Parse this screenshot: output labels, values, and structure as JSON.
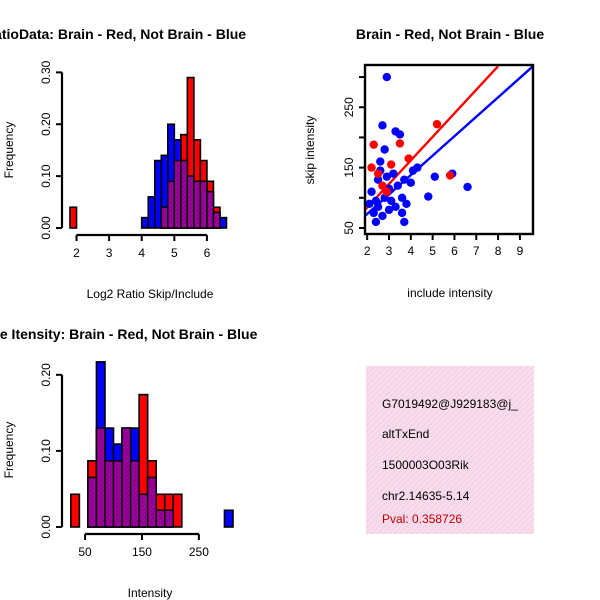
{
  "chart_data": [
    {
      "type": "bar",
      "title": "RatioData: Brain - Red, Not Brain - Blue",
      "xlabel": "Log2 Ratio Skip/Include",
      "ylabel": "Frequency",
      "xlim": [
        1.8,
        6.8
      ],
      "ylim": [
        0,
        0.32
      ],
      "xticks": [
        "2",
        "3",
        "4",
        "5",
        "6"
      ],
      "yticks": [
        "0.00",
        "0.10",
        "0.20",
        "0.30"
      ],
      "bin_width": 0.2,
      "series": [
        {
          "name": "Brain",
          "color": "#ff0000",
          "bins": [
            [
              1.8,
              0.04
            ],
            [
              4.6,
              0.04
            ],
            [
              4.8,
              0.09
            ],
            [
              5.0,
              0.13
            ],
            [
              5.2,
              0.18
            ],
            [
              5.4,
              0.29
            ],
            [
              5.6,
              0.17
            ],
            [
              5.8,
              0.13
            ],
            [
              6.0,
              0.09
            ],
            [
              6.2,
              0.04
            ]
          ]
        },
        {
          "name": "Not Brain",
          "color": "#0000ff",
          "bins": [
            [
              4.0,
              0.02
            ],
            [
              4.2,
              0.06
            ],
            [
              4.4,
              0.13
            ],
            [
              4.6,
              0.14
            ],
            [
              4.8,
              0.2
            ],
            [
              5.0,
              0.17
            ],
            [
              5.2,
              0.13
            ],
            [
              5.4,
              0.1
            ],
            [
              5.6,
              0.09
            ],
            [
              5.8,
              0.09
            ],
            [
              6.0,
              0.07
            ],
            [
              6.2,
              0.03
            ],
            [
              6.4,
              0.02
            ]
          ]
        }
      ]
    },
    {
      "type": "scatter",
      "title": "Brain - Red, Not Brain - Blue",
      "xlabel": "include intensity",
      "ylabel": "skip intensity",
      "xlim": [
        1.9,
        9.6
      ],
      "ylim": [
        40,
        320
      ],
      "xticks": [
        "2",
        "3",
        "4",
        "5",
        "6",
        "7",
        "8",
        "9"
      ],
      "yticks": [
        "50",
        "150",
        "250"
      ],
      "series": [
        {
          "name": "Brain",
          "color": "#ff0000",
          "points": [
            [
              2.2,
              150
            ],
            [
              2.3,
              188
            ],
            [
              2.5,
              140
            ],
            [
              2.7,
              120
            ],
            [
              2.9,
              110
            ],
            [
              3.1,
              155
            ],
            [
              3.5,
              190
            ],
            [
              3.9,
              165
            ],
            [
              5.2,
              222
            ],
            [
              5.8,
              137
            ],
            [
              9.3,
              32
            ]
          ],
          "fit": [
            [
              1.9,
              80
            ],
            [
              8.0,
              318
            ]
          ]
        },
        {
          "name": "Not Brain",
          "color": "#0000ff",
          "points": [
            [
              2.1,
              90
            ],
            [
              2.2,
              110
            ],
            [
              2.3,
              75
            ],
            [
              2.4,
              95
            ],
            [
              2.5,
              130
            ],
            [
              2.5,
              85
            ],
            [
              2.6,
              145
            ],
            [
              2.6,
              160
            ],
            [
              2.7,
              220
            ],
            [
              2.7,
              70
            ],
            [
              2.8,
              180
            ],
            [
              2.8,
              100
            ],
            [
              2.9,
              300
            ],
            [
              2.9,
              135
            ],
            [
              3.0,
              80
            ],
            [
              3.0,
              115
            ],
            [
              3.1,
              95
            ],
            [
              3.2,
              140
            ],
            [
              3.3,
              210
            ],
            [
              3.3,
              85
            ],
            [
              3.4,
              120
            ],
            [
              3.5,
              205
            ],
            [
              3.6,
              75
            ],
            [
              3.6,
              100
            ],
            [
              3.7,
              130
            ],
            [
              3.8,
              90
            ],
            [
              4.0,
              125
            ],
            [
              4.1,
              145
            ],
            [
              4.3,
              150
            ],
            [
              4.8,
              102
            ],
            [
              5.1,
              135
            ],
            [
              5.9,
              140
            ],
            [
              6.6,
              118
            ],
            [
              3.7,
              60
            ],
            [
              2.4,
              60
            ]
          ],
          "fit": [
            [
              1.9,
              70
            ],
            [
              9.6,
              318
            ]
          ]
        }
      ]
    },
    {
      "type": "bar",
      "title": "Gene Itensity: Brain - Red, Not Brain - Blue",
      "xlabel": "Intensity",
      "ylabel": "Frequency",
      "xlim": [
        20,
        310
      ],
      "ylim": [
        0,
        0.23
      ],
      "xticks": [
        "50",
        "150",
        "250"
      ],
      "yticks": [
        "0.00",
        "0.10",
        "0.20"
      ],
      "bin_width": 15,
      "series": [
        {
          "name": "Brain",
          "color": "#ff0000",
          "bins": [
            [
              25,
              0.043
            ],
            [
              55,
              0.087
            ],
            [
              70,
              0.13
            ],
            [
              85,
              0.087
            ],
            [
              100,
              0.087
            ],
            [
              115,
              0.13
            ],
            [
              130,
              0.087
            ],
            [
              145,
              0.174
            ],
            [
              160,
              0.087
            ],
            [
              175,
              0.043
            ],
            [
              190,
              0.043
            ],
            [
              205,
              0.043
            ]
          ]
        },
        {
          "name": "Not Brain",
          "color": "#0000ff",
          "bins": [
            [
              55,
              0.065
            ],
            [
              70,
              0.217
            ],
            [
              85,
              0.13
            ],
            [
              100,
              0.109
            ],
            [
              115,
              0.13
            ],
            [
              130,
              0.13
            ],
            [
              145,
              0.043
            ],
            [
              160,
              0.065
            ],
            [
              175,
              0.022
            ],
            [
              190,
              0.022
            ],
            [
              295,
              0.022
            ]
          ]
        }
      ]
    }
  ],
  "info": {
    "id": "G7019492@J929183@j_",
    "event": "altTxEnd",
    "gene": "1500003O03Rik",
    "location": "chr2.14635-5.14",
    "pval": "Pval: 0.358726"
  },
  "colors": {
    "overlap": "#a000a0",
    "panel_bg": "#f7dcec",
    "panel_hatch": "#f0c0dc"
  }
}
